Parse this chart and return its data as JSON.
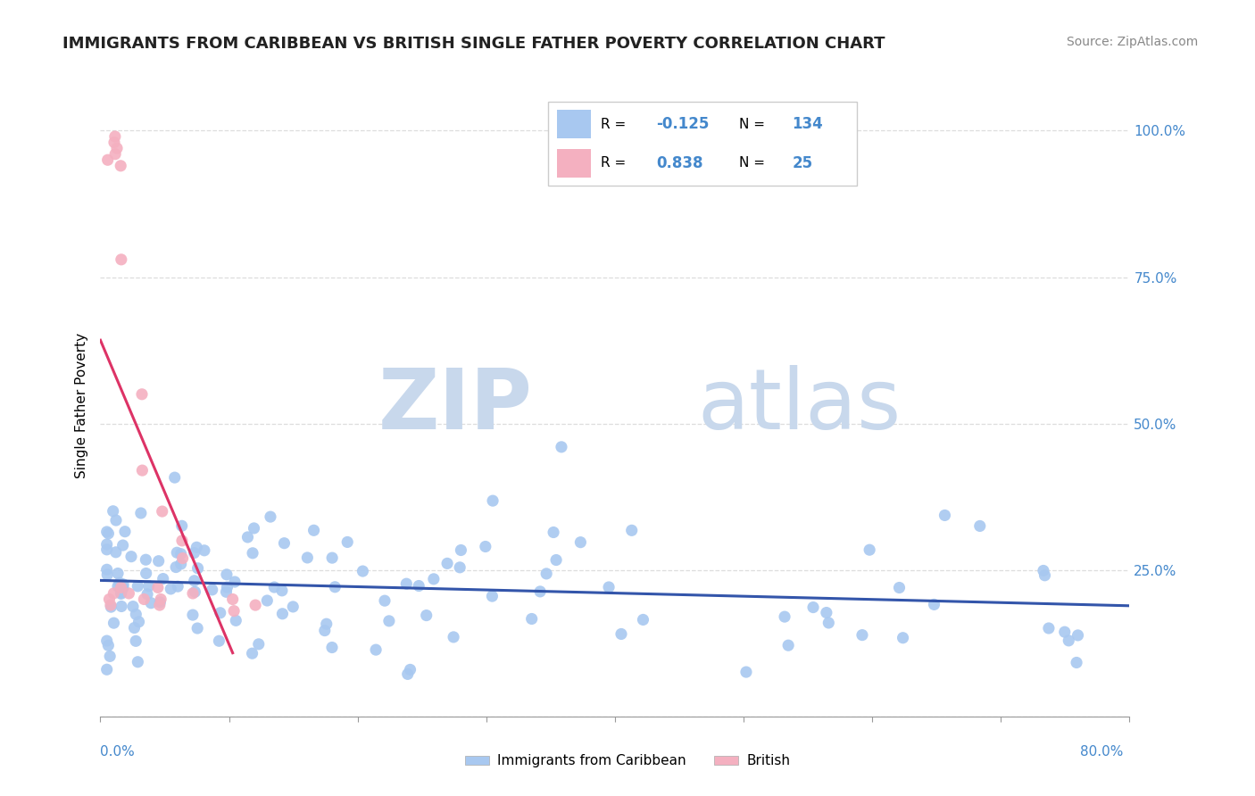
{
  "title": "IMMIGRANTS FROM CARIBBEAN VS BRITISH SINGLE FATHER POVERTY CORRELATION CHART",
  "source": "Source: ZipAtlas.com",
  "ylabel": "Single Father Poverty",
  "legend_labels": [
    "Immigrants from Caribbean",
    "British"
  ],
  "legend_r": [
    -0.125,
    0.838
  ],
  "legend_n": [
    134,
    25
  ],
  "blue_color": "#A8C8F0",
  "pink_color": "#F4B0C0",
  "blue_line_color": "#3355AA",
  "pink_line_color": "#DD3366",
  "watermark_zip": "ZIP",
  "watermark_atlas": "atlas",
  "watermark_color": "#C8D8EC",
  "xlim": [
    0.0,
    0.8
  ],
  "ylim": [
    0.0,
    1.06
  ],
  "ytick_vals": [
    0.0,
    0.25,
    0.5,
    0.75,
    1.0
  ],
  "ytick_labels": [
    "",
    "25.0%",
    "50.0%",
    "75.0%",
    "100.0%"
  ],
  "tick_color": "#4488CC"
}
